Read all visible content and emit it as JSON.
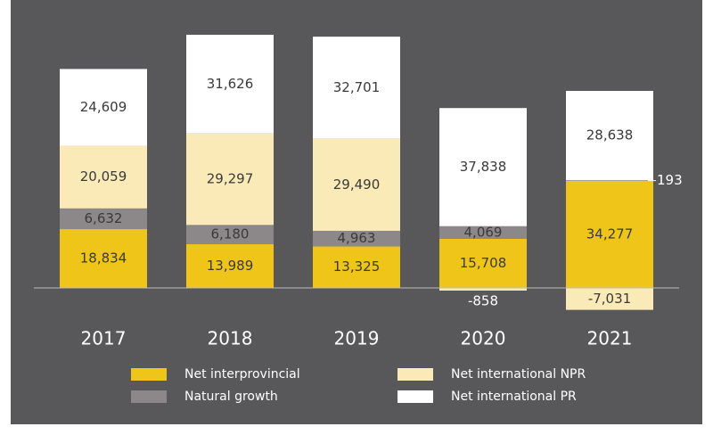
{
  "chart_data": {
    "type": "stacked-bar",
    "categories": [
      "2017",
      "2018",
      "2019",
      "2020",
      "2021"
    ],
    "series": [
      {
        "name": "Net interprovincial",
        "color": "#f0c51a",
        "values": [
          18834,
          13989,
          13325,
          15708,
          34277
        ],
        "value_labels": [
          "18,834",
          "13,989",
          "13,325",
          "15,708",
          "34,277"
        ]
      },
      {
        "name": "Natural growth",
        "color": "#8c8788",
        "values": [
          6632,
          6180,
          4963,
          4069,
          193
        ],
        "value_labels": [
          "6,632",
          "6,180",
          "4,963",
          "4,069",
          "193"
        ]
      },
      {
        "name": "Net international NPR",
        "color": "#f9eab8",
        "values": [
          20059,
          29297,
          29490,
          -858,
          -7031
        ],
        "value_labels": [
          "20,059",
          "29,297",
          "29,490",
          "-858",
          "-7,031"
        ]
      },
      {
        "name": "Net international PR",
        "color": "#ffffff",
        "values": [
          24609,
          31626,
          32701,
          37838,
          28638
        ],
        "value_labels": [
          "24,609",
          "31,626",
          "32,701",
          "37,838",
          "28,638"
        ]
      }
    ]
  }
}
